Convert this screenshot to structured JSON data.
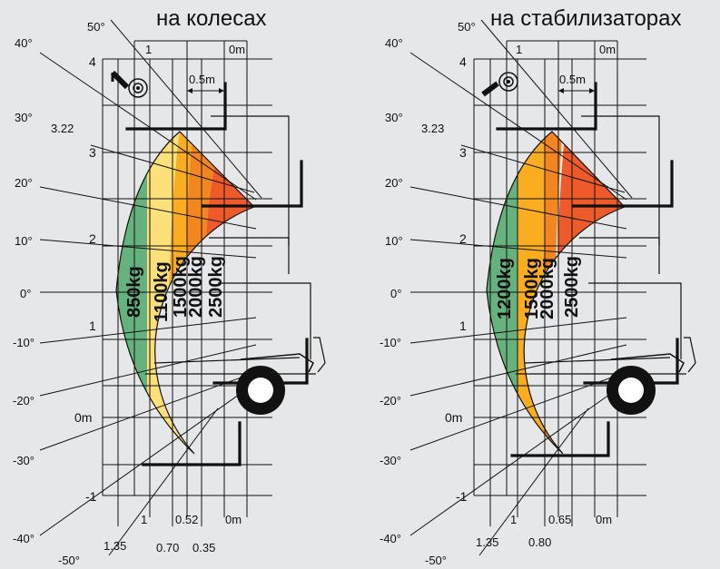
{
  "panels": [
    {
      "title": "на колесах",
      "y_labels": [
        "4",
        "3",
        "2",
        "1",
        "0m",
        "-1"
      ],
      "x_labels": [
        "1.35",
        "1",
        "0.70",
        "0.52",
        "0.35",
        "0m"
      ],
      "top_labels": [
        "1",
        "0m",
        "0.5m"
      ],
      "reach_label": "3.22",
      "angles": [
        "50°",
        "40°",
        "30°",
        "20°",
        "10°",
        "0°",
        "-10°",
        "-20°",
        "-30°",
        "-40°",
        "-50°"
      ],
      "zones": [
        {
          "label": "850kg",
          "color": "#66b27f"
        },
        {
          "label": "1100kg",
          "color": "#fde07a"
        },
        {
          "label": "1500kg",
          "color": "#f9ad1f"
        },
        {
          "label": "2000kg",
          "color": "#f48620"
        },
        {
          "label": "2500kg",
          "color": "#ee5a2a"
        }
      ]
    },
    {
      "title": "на стабилизаторах",
      "y_labels": [
        "4",
        "3",
        "2",
        "1",
        "0m",
        "-1"
      ],
      "x_labels": [
        "1.35",
        "1",
        "0.80",
        "0.65",
        "0m"
      ],
      "top_labels": [
        "1",
        "0m",
        "0.5m"
      ],
      "reach_label": "3.23",
      "angles": [
        "50°",
        "40°",
        "30°",
        "20°",
        "10°",
        "0°",
        "-10°",
        "-20°",
        "-30°",
        "-40°",
        "-50°"
      ],
      "zones": [
        {
          "label": "1200kg",
          "color": "#66b27f"
        },
        {
          "label": "1500kg",
          "color": "#f9ad1f"
        },
        {
          "label": "2000kg",
          "color": "#f48620"
        },
        {
          "label": "2500kg",
          "color": "#ee5a2a"
        }
      ]
    }
  ]
}
